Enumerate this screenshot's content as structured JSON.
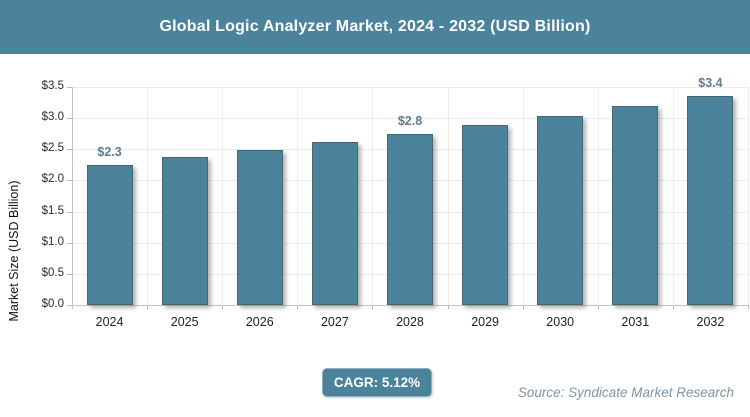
{
  "header": {
    "title": "Global Logic Analyzer Market, 2024 - 2032 (USD Billion)"
  },
  "chart_data": {
    "type": "bar",
    "title": "Global Logic Analyzer Market, 2024 - 2032 (USD Billion)",
    "categories": [
      "2024",
      "2025",
      "2026",
      "2027",
      "2028",
      "2029",
      "2030",
      "2031",
      "2032"
    ],
    "values": [
      2.25,
      2.37,
      2.49,
      2.61,
      2.75,
      2.89,
      3.04,
      3.19,
      3.35
    ],
    "bar_labels": [
      "$2.3",
      null,
      null,
      null,
      "$2.8",
      null,
      null,
      null,
      "$3.4"
    ],
    "xlabel": "",
    "ylabel": "Market Size (USD Billion)",
    "ylim": [
      0,
      3.5
    ],
    "ytick_step": 0.5,
    "ytick_labels": [
      "$0.0",
      "$0.5",
      "$1.0",
      "$1.5",
      "$2.0",
      "$2.5",
      "$3.0",
      "$3.5"
    ],
    "grid": true,
    "legend": false,
    "bar_color": "#4B829C"
  },
  "footer": {
    "cagr_label": "CAGR: 5.12%",
    "source": "Source: Syndicate Market Research"
  },
  "colors": {
    "accent": "#4B829C",
    "grid": "#ebebeb",
    "axis": "#c4c4c4",
    "data_label": "#5d7d93",
    "source_text": "#7e95a4",
    "header_text": "#ffffff"
  }
}
